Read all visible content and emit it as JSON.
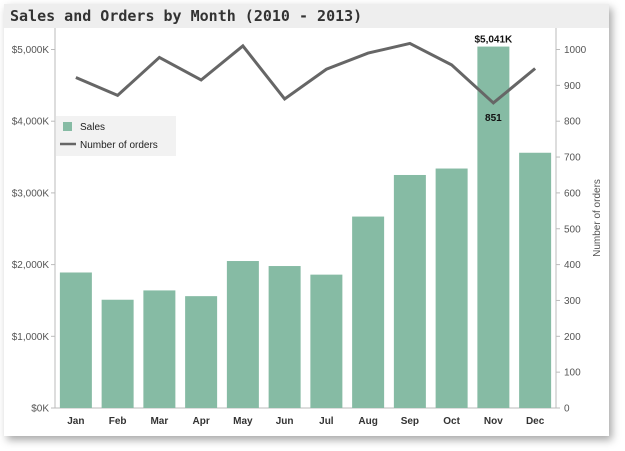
{
  "chart_data": {
    "type": "bar",
    "title": "Sales and Orders by Month (2010 - 2013)",
    "categories": [
      "Jan",
      "Feb",
      "Mar",
      "Apr",
      "May",
      "Jun",
      "Jul",
      "Aug",
      "Sep",
      "Oct",
      "Nov",
      "Dec"
    ],
    "series": [
      {
        "name": "Sales",
        "type": "bar",
        "axis": "left",
        "color": "#86bba4",
        "values": [
          1890,
          1510,
          1640,
          1560,
          2050,
          1980,
          1860,
          2670,
          3250,
          3340,
          5041,
          3560
        ]
      },
      {
        "name": "Number of orders",
        "type": "line",
        "axis": "right",
        "color": "#666666",
        "values": [
          922,
          872,
          978,
          915,
          1010,
          862,
          945,
          990,
          1017,
          957,
          851,
          947
        ]
      }
    ],
    "left_axis": {
      "ylim": [
        0,
        5300
      ],
      "ticks": [
        0,
        1000,
        2000,
        3000,
        4000,
        5000
      ],
      "tick_labels": [
        "$0K",
        "$1,000K",
        "$2,000K",
        "$3,000K",
        "$4,000K",
        "$5,000K"
      ]
    },
    "right_axis": {
      "label": "Number of orders",
      "ylim": [
        0,
        1060
      ],
      "ticks": [
        0,
        100,
        200,
        300,
        400,
        500,
        600,
        700,
        800,
        900,
        1000
      ],
      "tick_labels": [
        "0",
        "100",
        "200",
        "300",
        "400",
        "500",
        "600",
        "700",
        "800",
        "900",
        "1000"
      ]
    },
    "annotations": [
      {
        "series": "Sales",
        "category": "Nov",
        "text": "$5,041K",
        "position": "above"
      },
      {
        "series": "Number of orders",
        "category": "Nov",
        "text": "851",
        "position": "below"
      }
    ],
    "legend": {
      "placement": "left",
      "items": [
        "Sales",
        "Number of orders"
      ]
    },
    "grid": false
  }
}
